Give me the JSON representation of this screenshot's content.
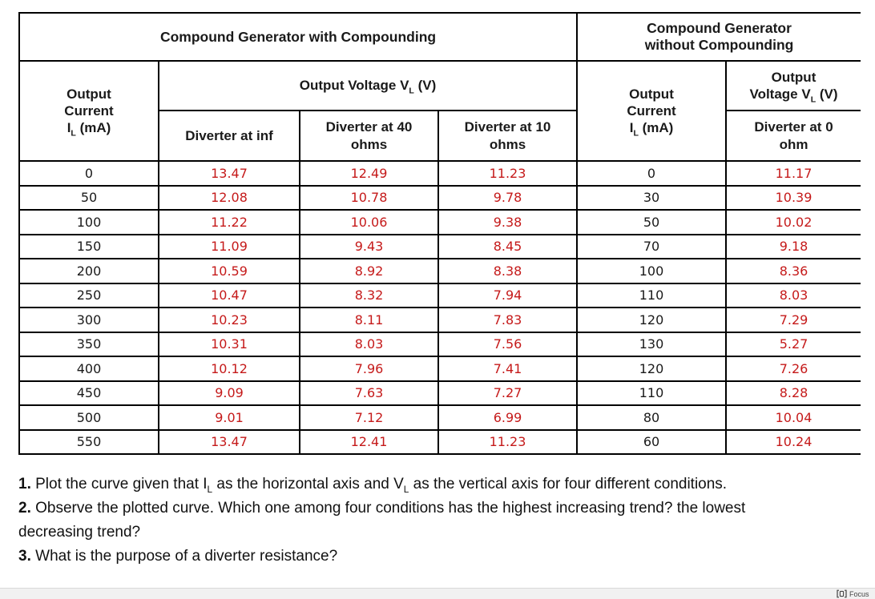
{
  "colors": {
    "value_red": "#c51a1a",
    "text": "#1a1a1a",
    "border": "#000000",
    "statusbar_bg": "#f1f1f1",
    "statusbar_border": "#d9d9d9"
  },
  "table": {
    "left_section": {
      "title": "Compound Generator with Compounding",
      "current_header": {
        "line1": "Output",
        "line2": "Current",
        "sym_pre": "I",
        "sym_sub": "L",
        "sym_post": " (mA)"
      },
      "voltage_header": {
        "pre": "Output Voltage V",
        "sub": "L",
        "post": " (V)"
      },
      "subheaders": [
        "Diverter at inf",
        "Diverter at 40 ohms",
        "Diverter at 10 ohms"
      ]
    },
    "right_section": {
      "title": "Compound Generator without Compounding",
      "current_header": {
        "line1": "Output",
        "line2": "Current",
        "sym_pre": "I",
        "sym_sub": "L",
        "sym_post": " (mA)"
      },
      "voltage_header": {
        "pre": "Output Voltage V",
        "sub": "L",
        "post": " (V)"
      },
      "subheader": "Diverter at 0 ohm"
    },
    "rows": [
      {
        "il": "0",
        "v_inf": "13.47",
        "v40": "12.49",
        "v10": "11.23",
        "il2": "0",
        "v0": "11.17"
      },
      {
        "il": "50",
        "v_inf": "12.08",
        "v40": "10.78",
        "v10": "9.78",
        "il2": "30",
        "v0": "10.39"
      },
      {
        "il": "100",
        "v_inf": "11.22",
        "v40": "10.06",
        "v10": "9.38",
        "il2": "50",
        "v0": "10.02"
      },
      {
        "il": "150",
        "v_inf": "11.09",
        "v40": "9.43",
        "v10": "8.45",
        "il2": "70",
        "v0": "9.18"
      },
      {
        "il": "200",
        "v_inf": "10.59",
        "v40": "8.92",
        "v10": "8.38",
        "il2": "100",
        "v0": "8.36"
      },
      {
        "il": "250",
        "v_inf": "10.47",
        "v40": "8.32",
        "v10": "7.94",
        "il2": "110",
        "v0": "8.03"
      },
      {
        "il": "300",
        "v_inf": "10.23",
        "v40": "8.11",
        "v10": "7.83",
        "il2": "120",
        "v0": "7.29"
      },
      {
        "il": "350",
        "v_inf": "10.31",
        "v40": "8.03",
        "v10": "7.56",
        "il2": "130",
        "v0": "5.27"
      },
      {
        "il": "400",
        "v_inf": "10.12",
        "v40": "7.96",
        "v10": "7.41",
        "il2": "120",
        "v0": "7.26"
      },
      {
        "il": "450",
        "v_inf": "9.09",
        "v40": "7.63",
        "v10": "7.27",
        "il2": "110",
        "v0": "8.28"
      },
      {
        "il": "500",
        "v_inf": "9.01",
        "v40": "7.12",
        "v10": "6.99",
        "il2": "80",
        "v0": "10.04"
      },
      {
        "il": "550",
        "v_inf": "13.47",
        "v40": "12.41",
        "v10": "11.23",
        "il2": "60",
        "v0": "10.24"
      }
    ]
  },
  "questions": {
    "q1": {
      "num": "1.",
      "part1": " Plot the curve given that I",
      "sub1": "L",
      "part2": " as the horizontal axis and V",
      "sub2": "L",
      "part3": " as the vertical axis for four different conditions."
    },
    "q2": {
      "num": "2.",
      "line1": " Observe the plotted curve. Which one among four conditions has the highest increasing trend? the lowest",
      "line2": "decreasing trend?"
    },
    "q3": {
      "num": "3.",
      "text": " What is the purpose of a diverter resistance?"
    }
  },
  "statusbar": {
    "focus_label": "Focus"
  }
}
